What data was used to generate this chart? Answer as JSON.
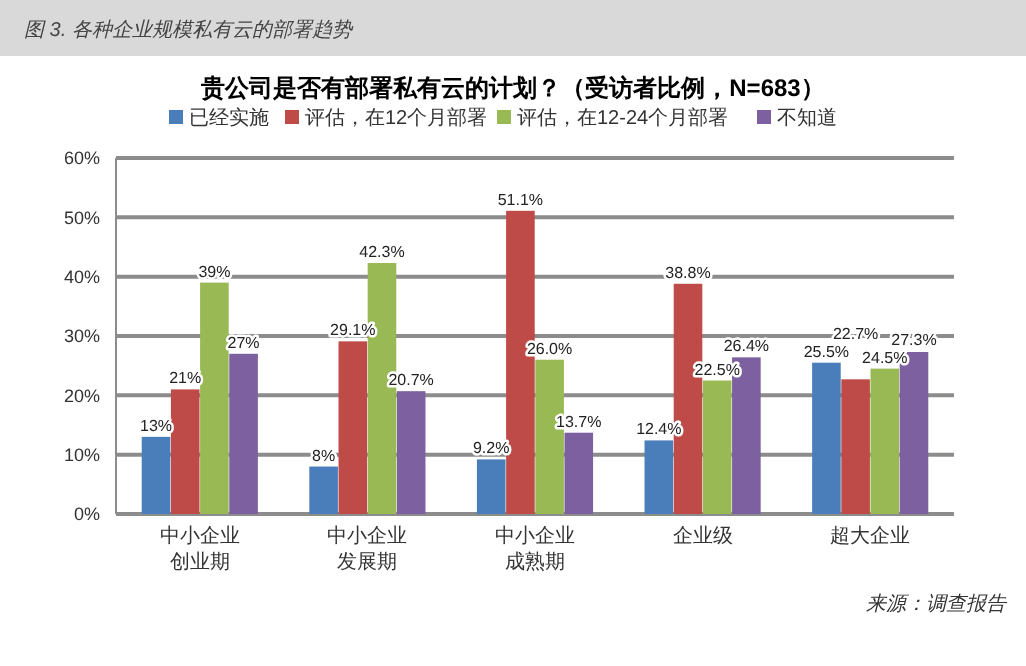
{
  "chart_data": {
    "type": "bar",
    "title": "图 3. 各种企业规模私有云的部署趋势",
    "subtitle": "贵公司是否有部署私有云的计划？（受访者比例，N=683）",
    "categories": [
      "中小企业创业期",
      "中小企业发展期",
      "中小企业成熟期",
      "企业级",
      "超大企业"
    ],
    "series": [
      {
        "name": "已经实施",
        "color": "#4a7ebb",
        "values": [
          13,
          8,
          9.2,
          12.4,
          25.5
        ],
        "value_labels": [
          "13%",
          "8%",
          "9.2%",
          "12.4%",
          "25.5%"
        ]
      },
      {
        "name": "评估，在12个月部署",
        "color": "#be4b48",
        "values": [
          21,
          29.1,
          51.1,
          38.8,
          22.7
        ],
        "value_labels": [
          "21%",
          "29.1%",
          "51.1%",
          "38.8%",
          "22.7%"
        ]
      },
      {
        "name": "评估，在12-24个月部署",
        "color": "#98b954",
        "values": [
          39,
          42.3,
          26.0,
          22.5,
          24.5
        ],
        "value_labels": [
          "39%",
          "42.3%",
          "26.0%",
          "22.5%",
          "24.5%"
        ]
      },
      {
        "name": "不知道",
        "color": "#7d60a0",
        "values": [
          27,
          20.7,
          13.7,
          26.4,
          27.3
        ],
        "value_labels": [
          "27%",
          "20.7%",
          "13.7%",
          "26.4%",
          "27.3%"
        ]
      }
    ],
    "ylim": [
      0,
      60
    ],
    "yticks": [
      {
        "value": 0,
        "label": "0%"
      },
      {
        "value": 10,
        "label": "10%"
      },
      {
        "value": 20,
        "label": "20%"
      },
      {
        "value": 30,
        "label": "30%"
      },
      {
        "value": 40,
        "label": "40%"
      },
      {
        "value": 50,
        "label": "50%"
      },
      {
        "value": 60,
        "label": "60%"
      }
    ],
    "grid": "y",
    "legend": "top",
    "annotations": [
      "来源：调查报告"
    ]
  }
}
